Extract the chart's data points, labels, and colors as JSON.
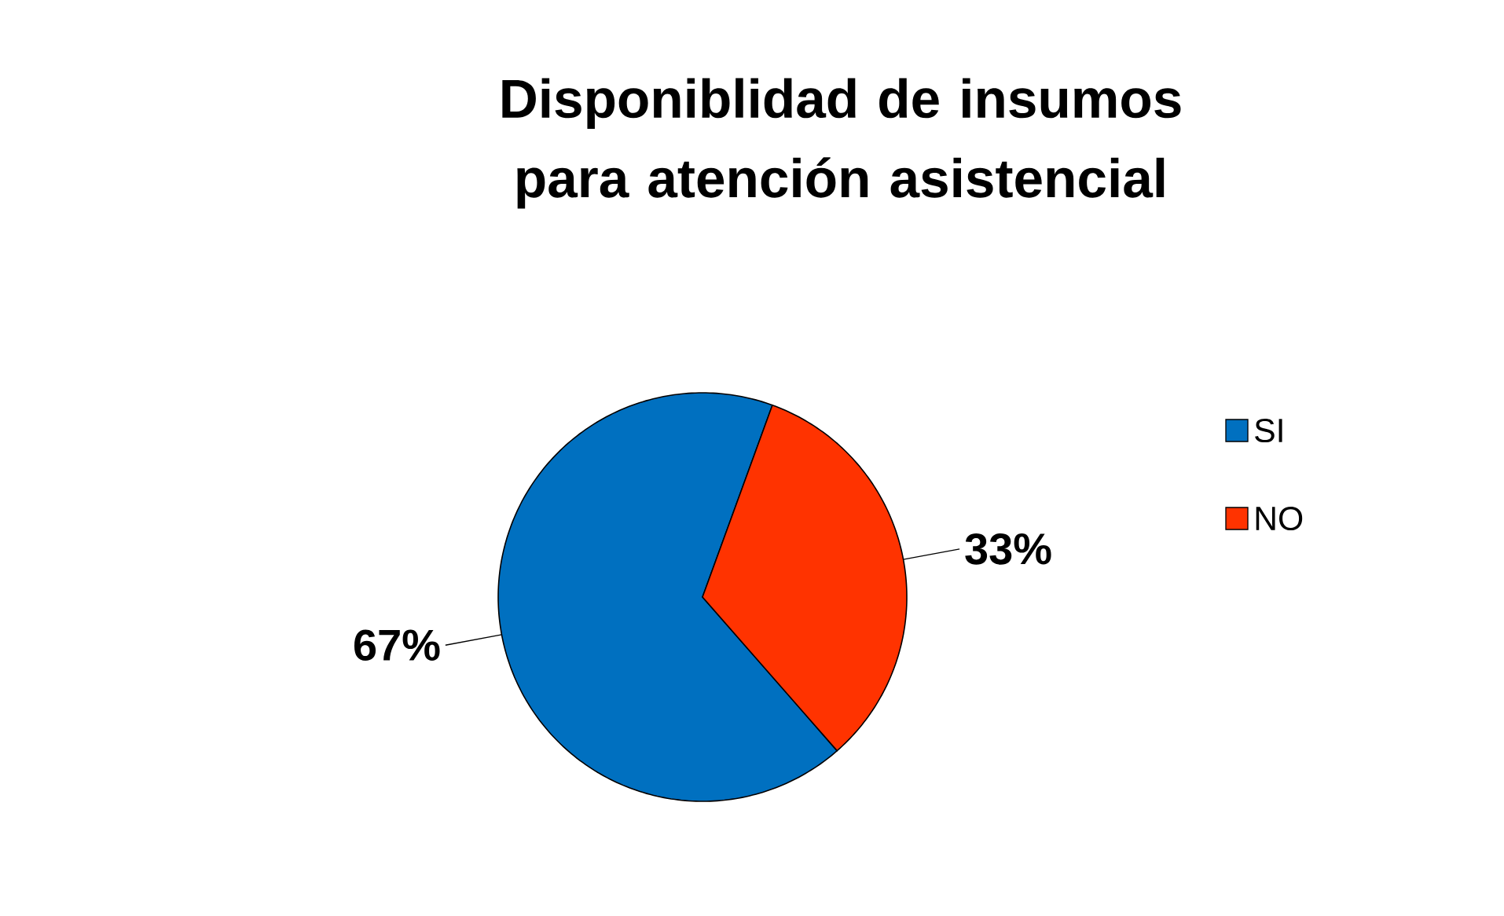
{
  "chart_data": {
    "type": "pie",
    "title": "Disponiblidad de insumos para atención asistencial",
    "categories": [
      "SI",
      "NO"
    ],
    "values": [
      67,
      33
    ],
    "colors": [
      "#0070c0",
      "#ff3300"
    ],
    "value_labels": [
      "67%",
      "33%"
    ],
    "legend": "right"
  }
}
